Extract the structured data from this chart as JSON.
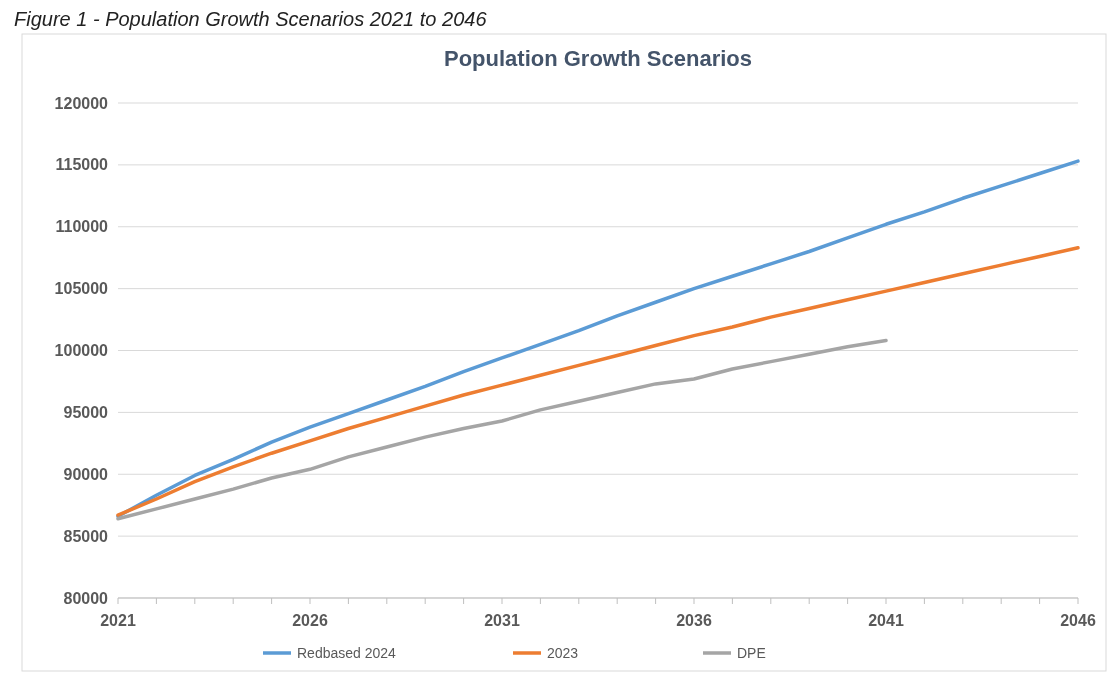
{
  "chart_data": {
    "type": "line",
    "title": "Population Growth Scenarios",
    "annotations": [
      "Figure 1 - Population Growth Scenarios 2021 to 2046"
    ],
    "x": [
      2021,
      2022,
      2023,
      2024,
      2025,
      2026,
      2027,
      2028,
      2029,
      2030,
      2031,
      2032,
      2033,
      2034,
      2035,
      2036,
      2037,
      2038,
      2039,
      2040,
      2041,
      2042,
      2043,
      2044,
      2045,
      2046
    ],
    "series": [
      {
        "name": "Redbased 2024",
        "color": "#5b9bd5",
        "values": [
          86600,
          88300,
          89900,
          91200,
          92600,
          93800,
          94900,
          96000,
          97100,
          98300,
          99400,
          100500,
          101600,
          102800,
          103900,
          105000,
          106000,
          107000,
          108000,
          109100,
          110200,
          111200,
          112300,
          113300,
          114300,
          115300
        ]
      },
      {
        "name": "2023",
        "color": "#ed7d31",
        "values": [
          86700,
          88000,
          89400,
          90600,
          91700,
          92700,
          93700,
          94600,
          95500,
          96400,
          97200,
          98000,
          98800,
          99600,
          100400,
          101200,
          101900,
          102700,
          103400,
          104100,
          104800,
          105500,
          106200,
          106900,
          107600,
          108300
        ]
      },
      {
        "name": "DPE",
        "color": "#a5a5a5",
        "x": [
          2021,
          2022,
          2023,
          2024,
          2025,
          2026,
          2027,
          2028,
          2029,
          2030,
          2031,
          2032,
          2033,
          2034,
          2035,
          2036,
          2037,
          2038,
          2039,
          2040,
          2041
        ],
        "values": [
          86400,
          87200,
          88000,
          88800,
          89700,
          90400,
          91400,
          92200,
          93000,
          93700,
          94300,
          95200,
          95900,
          96600,
          97300,
          97700,
          98500,
          99100,
          99700,
          100300,
          100800
        ]
      }
    ],
    "xlim": [
      2021,
      2046
    ],
    "xticks": [
      2021,
      {
        "value": 2022,
        "label": null
      },
      {
        "value": 2023,
        "label": null
      },
      {
        "value": 2024,
        "label": null
      },
      {
        "value": 2025,
        "label": null
      },
      2026,
      {
        "value": 2027,
        "label": null
      },
      {
        "value": 2028,
        "label": null
      },
      {
        "value": 2029,
        "label": null
      },
      {
        "value": 2030,
        "label": null
      },
      2031,
      {
        "value": 2032,
        "label": null
      },
      {
        "value": 2033,
        "label": null
      },
      {
        "value": 2034,
        "label": null
      },
      {
        "value": 2035,
        "label": null
      },
      2036,
      {
        "value": 2037,
        "label": null
      },
      {
        "value": 2038,
        "label": null
      },
      {
        "value": 2039,
        "label": null
      },
      {
        "value": 2040,
        "label": null
      },
      2041,
      {
        "value": 2042,
        "label": null
      },
      {
        "value": 2043,
        "label": null
      },
      {
        "value": 2044,
        "label": null
      },
      {
        "value": 2045,
        "label": null
      },
      2046
    ],
    "ylim": [
      80000,
      120000
    ],
    "yticks": [
      80000,
      85000,
      90000,
      95000,
      100000,
      105000,
      110000,
      115000,
      120000
    ],
    "grid": "y",
    "legend": "bottom",
    "marker": "none",
    "line_style": "solid"
  }
}
